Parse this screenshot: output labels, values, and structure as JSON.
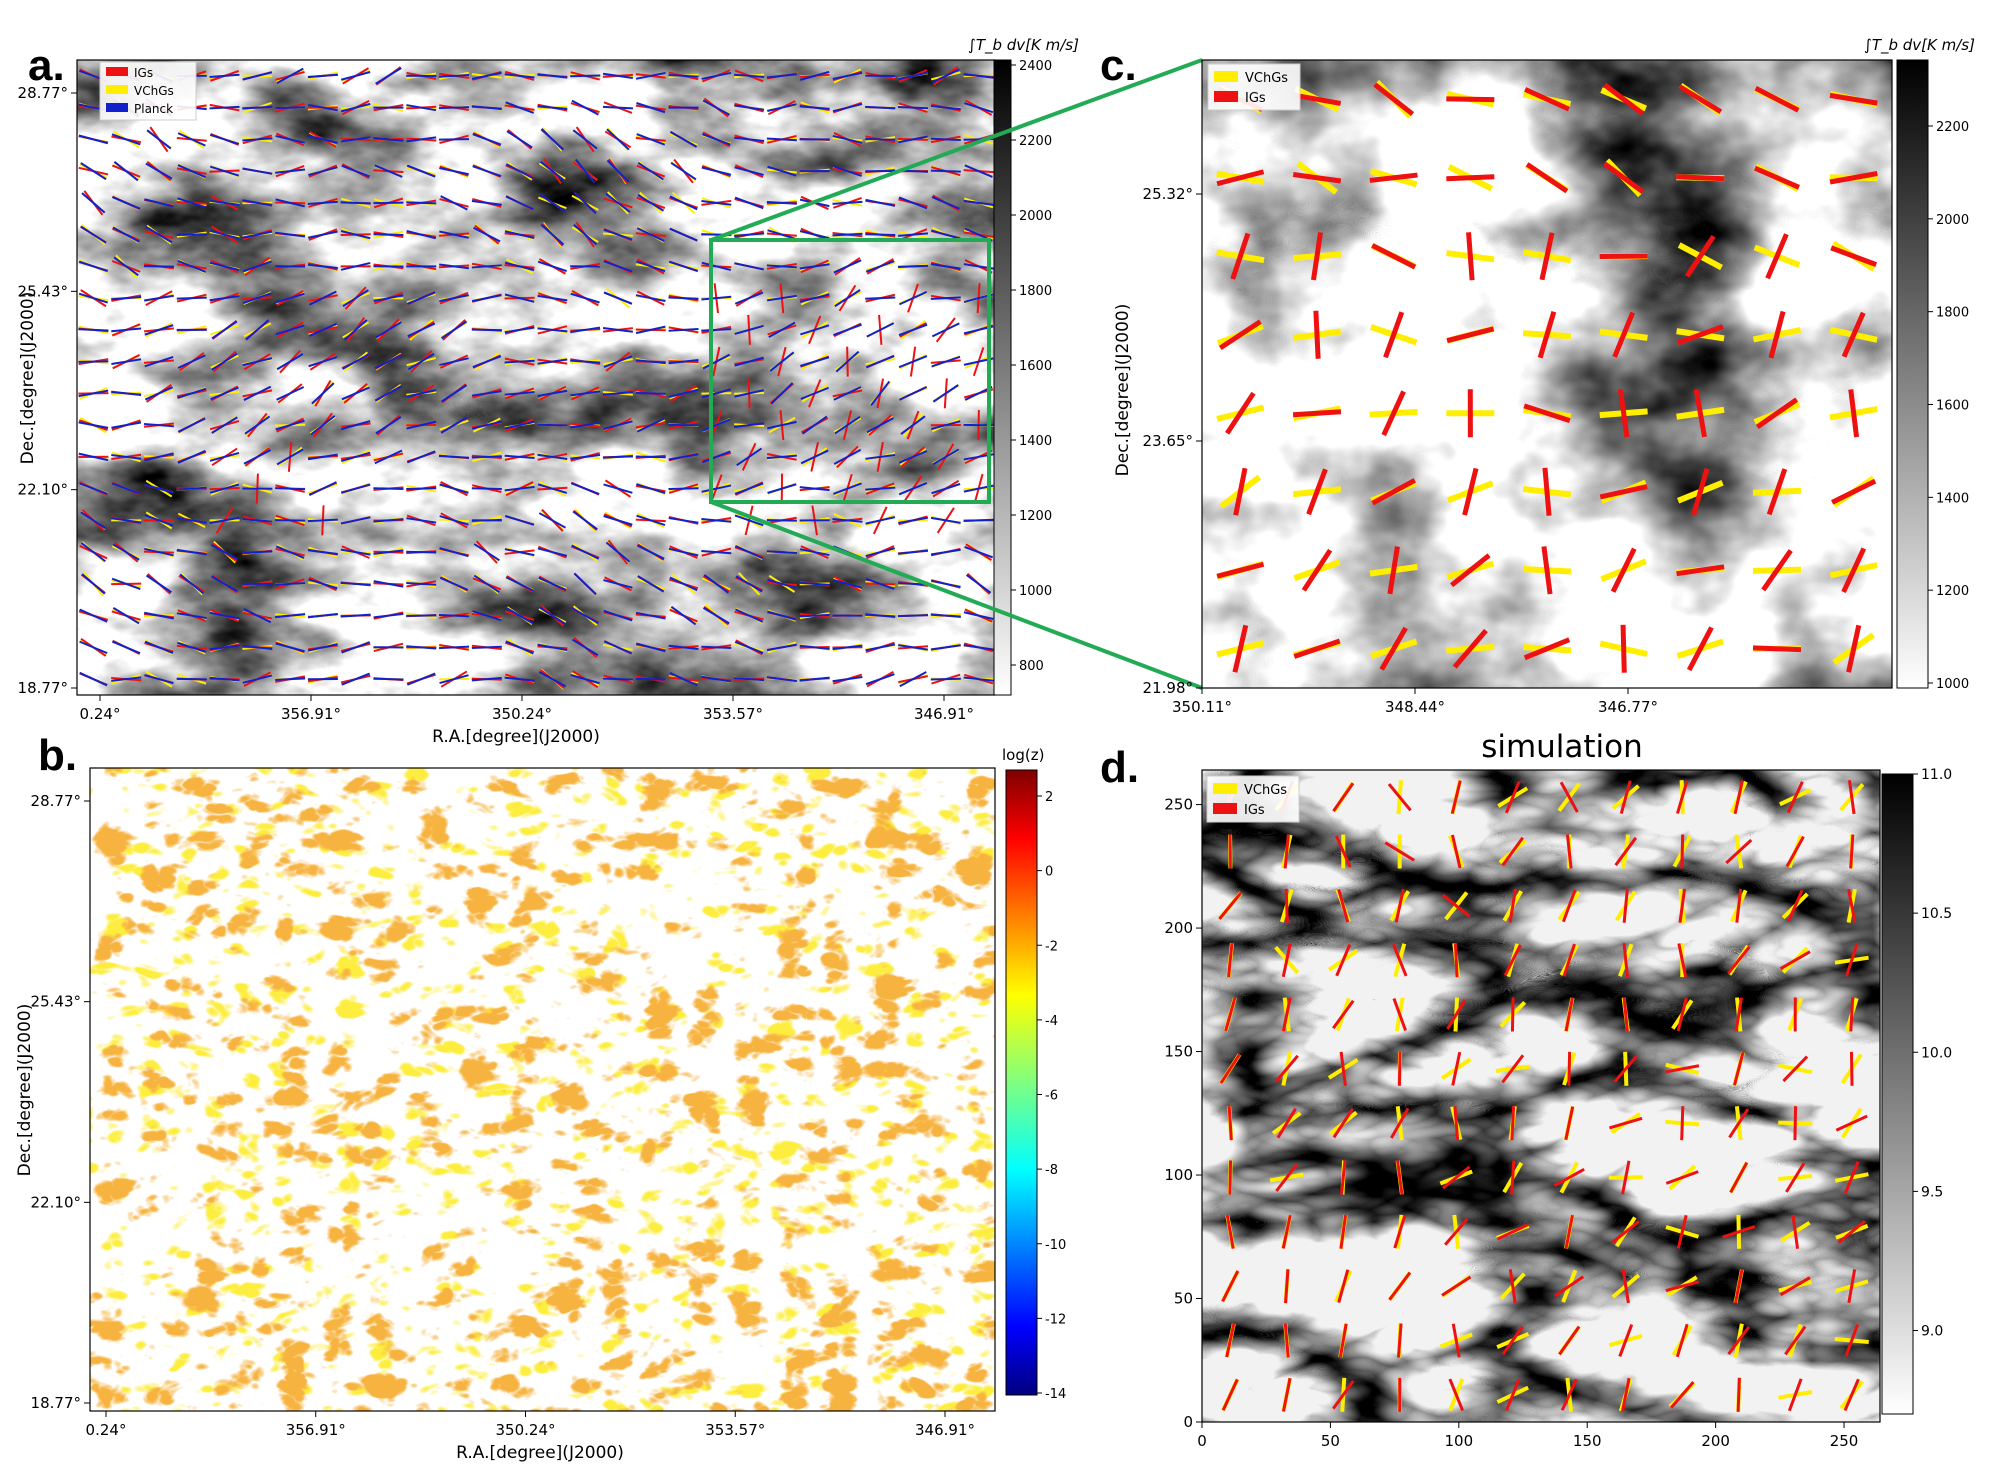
{
  "figure": {
    "zoom_connector_color": "#22aa55",
    "panels": [
      "a.",
      "b.",
      "c.",
      "d."
    ]
  },
  "chart_data": [
    {
      "panel": "a.",
      "type": "vector-field-map",
      "background": "integrated intensity map (grayscale)",
      "xlabel": "R.A.[degree](J2000)",
      "ylabel": "Dec.[degree](J2000)",
      "xticks": [
        "0.24°",
        "356.91°",
        "350.24°",
        "353.57°",
        "346.91°"
      ],
      "yticks": [
        "28.77°",
        "25.43°",
        "22.10°",
        "18.77°"
      ],
      "colorbar_label": "∫T_b dv[K m/s]",
      "colorbar_ticks": [
        "800",
        "1000",
        "1200",
        "1400",
        "1600",
        "1800",
        "2000",
        "2200",
        "2400"
      ],
      "colormap": "gray_r",
      "legend_position": "top-left",
      "legend": [
        {
          "name": "IGs",
          "color": "#ee1111"
        },
        {
          "name": "VChGs",
          "color": "#ffee00"
        },
        {
          "name": "Planck",
          "color": "#1122cc"
        }
      ],
      "grid_shape": [
        20,
        28
      ],
      "inset_box": "green rectangle over the right part of the map, enlarged in panel c."
    },
    {
      "panel": "b.",
      "type": "heatmap",
      "xlabel": "R.A.[degree](J2000)",
      "ylabel": "Dec.[degree](J2000)",
      "xticks": [
        "0.24°",
        "356.91°",
        "350.24°",
        "353.57°",
        "346.91°"
      ],
      "yticks": [
        "28.77°",
        "25.43°",
        "22.10°",
        "18.77°"
      ],
      "colorbar_label": "log(z)",
      "colorbar_ticks": [
        "2",
        "0",
        "-2",
        "-4",
        "-6",
        "-8",
        "-10",
        "-12",
        "-14"
      ],
      "colorbar_range": [
        -15,
        3
      ],
      "colormap": "jet"
    },
    {
      "panel": "c.",
      "type": "vector-field-map",
      "xlabel": "",
      "ylabel": "Dec.[degree](J2000)",
      "xticks": [
        "350.11°",
        "348.44°",
        "346.77°"
      ],
      "yticks": [
        "25.32°",
        "23.65°",
        "21.98°"
      ],
      "colorbar_label": "∫T_b dv[K m/s]",
      "colorbar_ticks": [
        "1000",
        "1200",
        "1400",
        "1600",
        "1800",
        "2000",
        "2200"
      ],
      "colormap": "gray_r",
      "legend_position": "top-left",
      "legend": [
        {
          "name": "VChGs",
          "color": "#ffee00"
        },
        {
          "name": "IGs",
          "color": "#ee1111"
        }
      ],
      "grid_shape": [
        8,
        9
      ]
    },
    {
      "panel": "d.",
      "type": "vector-field-map",
      "title": "simulation",
      "xticks": [
        "0",
        "50",
        "100",
        "150",
        "200",
        "250"
      ],
      "yticks": [
        "0",
        "50",
        "100",
        "150",
        "200",
        "250"
      ],
      "xlim": [
        0,
        264
      ],
      "ylim": [
        0,
        264
      ],
      "colorbar_ticks": [
        "9.0",
        "9.5",
        "10.0",
        "10.5",
        "11.0"
      ],
      "colorbar_range": [
        8.7,
        11.0
      ],
      "colormap": "gray_r",
      "legend_position": "top-left",
      "legend": [
        {
          "name": "VChGs",
          "color": "#ffee00"
        },
        {
          "name": "IGs",
          "color": "#ee1111"
        }
      ],
      "grid_shape": [
        12,
        12
      ]
    }
  ]
}
